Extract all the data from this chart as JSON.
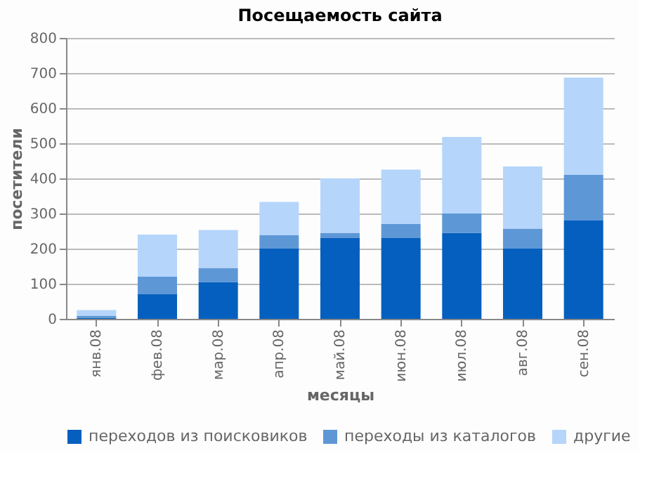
{
  "chart_data": {
    "type": "bar",
    "stacked": true,
    "title": "Посещаемость сайта",
    "xlabel": "месяцы",
    "ylabel": "посетители",
    "categories": [
      "янв.08",
      "фев.08",
      "мар.08",
      "апр.08",
      "май.08",
      "июн.08",
      "июл.08",
      "авг.08",
      "сен.08"
    ],
    "series": [
      {
        "name": "переходов из поисковиков",
        "color": "#055fbe",
        "values": [
          3,
          70,
          105,
          200,
          230,
          230,
          245,
          200,
          280
        ]
      },
      {
        "name": "переходы из каталогов",
        "color": "#5e97d6",
        "values": [
          6,
          50,
          40,
          38,
          15,
          40,
          55,
          57,
          130
        ]
      },
      {
        "name": "другие",
        "color": "#b5d5fb",
        "values": [
          16,
          120,
          108,
          95,
          155,
          155,
          218,
          177,
          277
        ]
      }
    ],
    "ylim": [
      0,
      800
    ],
    "yticks": [
      0,
      100,
      200,
      300,
      400,
      500,
      600,
      700,
      800
    ],
    "grid": "y",
    "legend": "bottom"
  }
}
